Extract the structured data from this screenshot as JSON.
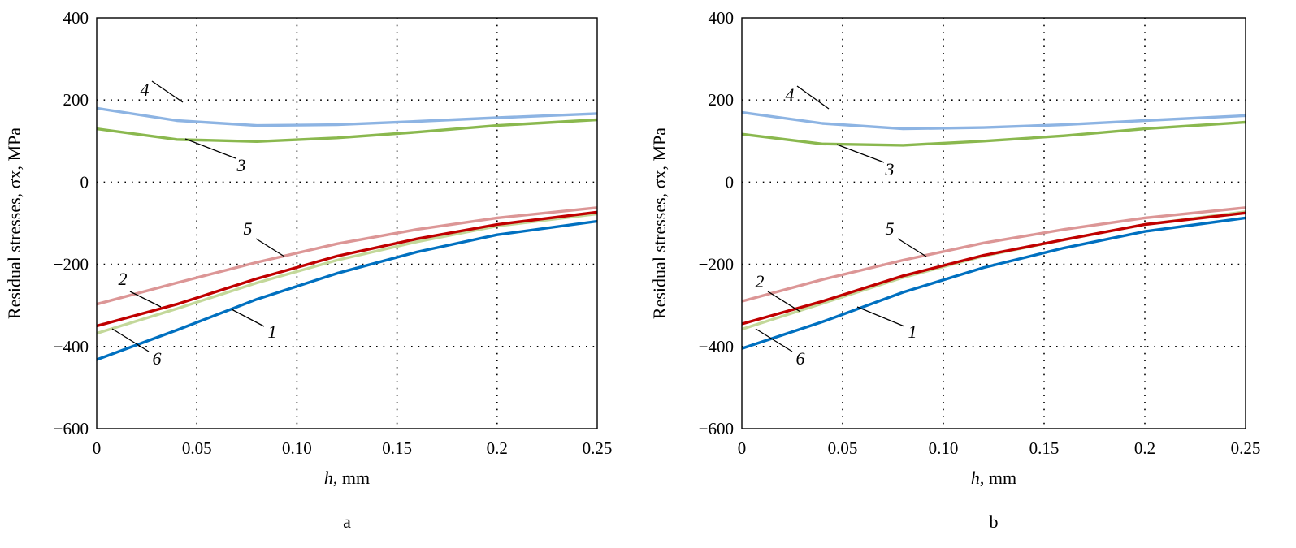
{
  "chart_data": [
    {
      "type": "line",
      "caption": "a",
      "xlabel_var": "h",
      "xlabel_unit": ", mm",
      "ylabel": "Residual stresses, σx, MPa",
      "xlim": [
        0,
        0.25
      ],
      "ylim": [
        -600,
        400
      ],
      "xticks": [
        0,
        0.05,
        0.1,
        0.15,
        0.2,
        0.25
      ],
      "xtick_labels": [
        "0",
        "0.05",
        "0.10",
        "0.15",
        "0.2",
        "0.25"
      ],
      "yticks": [
        400,
        200,
        0,
        -200,
        -400,
        -600
      ],
      "ytick_labels": [
        "400",
        "200",
        "0",
        "−200",
        "−400",
        "−600"
      ],
      "grid": true,
      "x": [
        0,
        0.04,
        0.08,
        0.12,
        0.16,
        0.2,
        0.25
      ],
      "series": [
        {
          "name": "4",
          "color": "#8db4e3",
          "values": [
            180,
            150,
            138,
            140,
            148,
            157,
            167
          ]
        },
        {
          "name": "3",
          "color": "#8ab84e",
          "values": [
            130,
            104,
            99,
            108,
            122,
            138,
            152
          ]
        },
        {
          "name": "5",
          "color": "#dc9696",
          "values": [
            -297,
            -245,
            -195,
            -150,
            -115,
            -87,
            -62
          ]
        },
        {
          "name": "6",
          "color": "#c3d89a",
          "values": [
            -368,
            -308,
            -245,
            -190,
            -145,
            -107,
            -77
          ]
        },
        {
          "name": "2",
          "color": "#c00000",
          "values": [
            -350,
            -297,
            -235,
            -180,
            -138,
            -103,
            -73
          ]
        },
        {
          "name": "1",
          "color": "#0070c0",
          "values": [
            -432,
            -360,
            -285,
            -222,
            -170,
            -128,
            -95
          ]
        }
      ]
    },
    {
      "type": "line",
      "caption": "b",
      "xlabel_var": "h",
      "xlabel_unit": ", mm",
      "ylabel": "Residual stresses, σx, MPa",
      "xlim": [
        0,
        0.25
      ],
      "ylim": [
        -600,
        400
      ],
      "xticks": [
        0,
        0.05,
        0.1,
        0.15,
        0.2,
        0.25
      ],
      "xtick_labels": [
        "0",
        "0.05",
        "0.10",
        "0.15",
        "0.2",
        "0.25"
      ],
      "yticks": [
        400,
        200,
        0,
        -200,
        -400,
        -600
      ],
      "ytick_labels": [
        "400",
        "200",
        "0",
        "−200",
        "−400",
        "−600"
      ],
      "grid": true,
      "x": [
        0,
        0.04,
        0.08,
        0.12,
        0.16,
        0.2,
        0.25
      ],
      "series": [
        {
          "name": "4",
          "color": "#8db4e3",
          "values": [
            170,
            143,
            130,
            133,
            140,
            150,
            162
          ]
        },
        {
          "name": "3",
          "color": "#8ab84e",
          "values": [
            117,
            93,
            90,
            100,
            113,
            130,
            146
          ]
        },
        {
          "name": "5",
          "color": "#dc9696",
          "values": [
            -290,
            -237,
            -190,
            -148,
            -115,
            -87,
            -62
          ]
        },
        {
          "name": "6",
          "color": "#c3d89a",
          "values": [
            -358,
            -295,
            -232,
            -180,
            -140,
            -103,
            -72
          ]
        },
        {
          "name": "2",
          "color": "#c00000",
          "values": [
            -345,
            -290,
            -228,
            -178,
            -140,
            -103,
            -75
          ]
        },
        {
          "name": "1",
          "color": "#0070c0",
          "values": [
            -405,
            -340,
            -268,
            -208,
            -160,
            -120,
            -87
          ]
        }
      ]
    }
  ]
}
